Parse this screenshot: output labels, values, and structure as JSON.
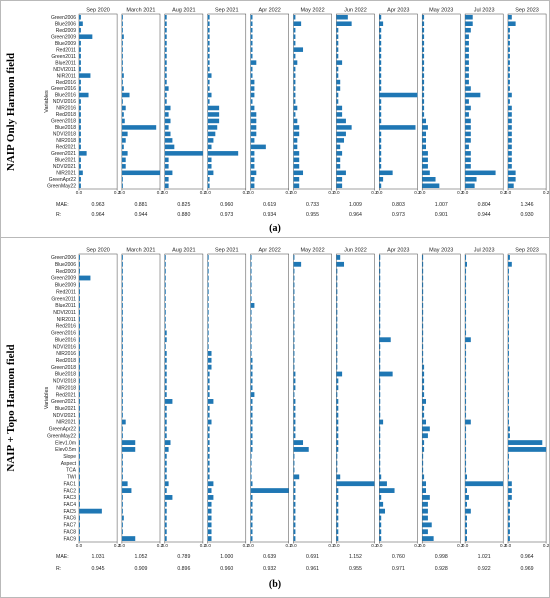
{
  "figure": {
    "labels": [
      "(a)",
      "(b)"
    ],
    "side_titles": [
      "NAIP Only Harmon field",
      "NAIP + Topo Harmon field"
    ],
    "metric_labels": [
      "MAE:",
      "R:"
    ]
  },
  "chart_data": [
    {
      "type": "bar",
      "orientation": "horizontal",
      "panel_label": "(a)",
      "side_title": "NAIP Only Harmon field",
      "ylabel": "Variables",
      "xlim": [
        0,
        0.2
      ],
      "x_tick_labels": [
        "0.0",
        "0.2"
      ],
      "categories": [
        "Green2006",
        "Blue2006",
        "Red2009",
        "Green2009",
        "Blue2009",
        "Red2011",
        "Green2011",
        "Blue2011",
        "NDVI2011",
        "NIR2011",
        "Red2016",
        "Green2016",
        "Blue2016",
        "NDVI2016",
        "NIR2016",
        "Red2018",
        "Green2018",
        "Blue2018",
        "NDVI2018",
        "NIR2018",
        "Red2021",
        "Green2021",
        "Blue2021",
        "NDVI2021",
        "NIR2021",
        "GreenApr22",
        "GreenMay22"
      ],
      "series": [
        {
          "name": "Sep 2020",
          "values": [
            0.01,
            0.02,
            0.01,
            0.07,
            0.01,
            0.01,
            0.01,
            0.01,
            0.01,
            0.06,
            0.01,
            0.01,
            0.05,
            0.01,
            0.01,
            0.01,
            0.01,
            0.01,
            0.01,
            0.01,
            0.01,
            0.04,
            0.01,
            0.01,
            0.02,
            0.01,
            0.01
          ]
        },
        {
          "name": "March 2021",
          "values": [
            0.005,
            0.005,
            0.005,
            0.01,
            0.005,
            0.005,
            0.005,
            0.005,
            0.005,
            0.01,
            0.005,
            0.01,
            0.04,
            0.005,
            0.02,
            0.01,
            0.015,
            0.18,
            0.03,
            0.02,
            0.01,
            0.03,
            0.02,
            0.02,
            0.2,
            0.005,
            0.005
          ]
        },
        {
          "name": "Aug 2021",
          "values": [
            0.01,
            0.01,
            0.01,
            0.01,
            0.01,
            0.01,
            0.01,
            0.01,
            0.01,
            0.01,
            0.01,
            0.02,
            0.01,
            0.01,
            0.03,
            0.02,
            0.03,
            0.02,
            0.03,
            0.04,
            0.05,
            0.2,
            0.02,
            0.02,
            0.04,
            0.02,
            0.02
          ]
        },
        {
          "name": "Sep 2021",
          "values": [
            0.01,
            0.01,
            0.01,
            0.01,
            0.01,
            0.01,
            0.01,
            0.01,
            0.01,
            0.02,
            0.01,
            0.01,
            0.02,
            0.01,
            0.06,
            0.06,
            0.06,
            0.05,
            0.04,
            0.03,
            0.02,
            0.16,
            0.02,
            0.02,
            0.03,
            0.01,
            0.01
          ]
        },
        {
          "name": "Apr 2022",
          "values": [
            0.01,
            0.01,
            0.01,
            0.01,
            0.01,
            0.01,
            0.01,
            0.03,
            0.01,
            0.01,
            0.02,
            0.02,
            0.02,
            0.01,
            0.02,
            0.03,
            0.03,
            0.03,
            0.03,
            0.02,
            0.08,
            0.02,
            0.02,
            0.02,
            0.03,
            0.02,
            0.02
          ]
        },
        {
          "name": "May 2022",
          "values": [
            0.01,
            0.04,
            0.01,
            0.01,
            0.01,
            0.05,
            0.01,
            0.02,
            0.01,
            0.01,
            0.01,
            0.01,
            0.01,
            0.01,
            0.02,
            0.01,
            0.02,
            0.03,
            0.03,
            0.02,
            0.02,
            0.03,
            0.03,
            0.03,
            0.05,
            0.03,
            0.03
          ]
        },
        {
          "name": "Jun 2022",
          "values": [
            0.06,
            0.08,
            0.01,
            0.01,
            0.01,
            0.01,
            0.01,
            0.03,
            0.01,
            0.01,
            0.02,
            0.02,
            0.01,
            0.01,
            0.03,
            0.03,
            0.05,
            0.08,
            0.05,
            0.04,
            0.02,
            0.03,
            0.02,
            0.02,
            0.05,
            0.03,
            0.03
          ]
        },
        {
          "name": "Apr 2023",
          "values": [
            0.01,
            0.02,
            0.01,
            0.01,
            0.01,
            0.01,
            0.01,
            0.01,
            0.01,
            0.01,
            0.01,
            0.01,
            0.2,
            0.01,
            0.01,
            0.01,
            0.01,
            0.19,
            0.01,
            0.01,
            0.01,
            0.01,
            0.01,
            0.01,
            0.07,
            0.02,
            0.01
          ]
        },
        {
          "name": "May 2023",
          "values": [
            0.01,
            0.01,
            0.01,
            0.01,
            0.01,
            0.01,
            0.01,
            0.01,
            0.01,
            0.01,
            0.01,
            0.01,
            0.01,
            0.01,
            0.01,
            0.01,
            0.02,
            0.03,
            0.02,
            0.02,
            0.02,
            0.03,
            0.03,
            0.03,
            0.04,
            0.07,
            0.09
          ]
        },
        {
          "name": "Jul 2023",
          "values": [
            0.04,
            0.04,
            0.03,
            0.02,
            0.02,
            0.02,
            0.02,
            0.02,
            0.02,
            0.02,
            0.02,
            0.03,
            0.08,
            0.02,
            0.03,
            0.02,
            0.03,
            0.03,
            0.03,
            0.03,
            0.02,
            0.03,
            0.03,
            0.03,
            0.16,
            0.06,
            0.05
          ]
        },
        {
          "name": "Sep 2023",
          "values": [
            0.02,
            0.04,
            0.01,
            0.01,
            0.01,
            0.01,
            0.01,
            0.01,
            0.01,
            0.01,
            0.01,
            0.01,
            0.02,
            0.01,
            0.02,
            0.02,
            0.02,
            0.02,
            0.02,
            0.02,
            0.02,
            0.02,
            0.02,
            0.02,
            0.04,
            0.04,
            0.03
          ]
        }
      ],
      "mae": [
        "0.963",
        "0.881",
        "0.825",
        "0.960",
        "0.619",
        "0.733",
        "1.009",
        "0.803",
        "1.007",
        "0.804",
        "1.346"
      ],
      "r": [
        "0.964",
        "0.944",
        "0.880",
        "0.973",
        "0.934",
        "0.955",
        "0.964",
        "0.973",
        "0.901",
        "0.944",
        "0.930"
      ]
    },
    {
      "type": "bar",
      "orientation": "horizontal",
      "panel_label": "(b)",
      "side_title": "NAIP + Topo Harmon field",
      "ylabel": "Variables",
      "xlim": [
        0,
        0.2
      ],
      "x_tick_labels": [
        "0.0",
        "0.2"
      ],
      "categories": [
        "Green2006",
        "Blue2006",
        "Red2009",
        "Green2009",
        "Blue2009",
        "Red2011",
        "Green2011",
        "Blue2011",
        "NDVI2011",
        "NIR2011",
        "Red2016",
        "Green2016",
        "Blue2016",
        "NDVI2016",
        "NIR2016",
        "Red2018",
        "Green2018",
        "Blue2018",
        "NDVI2018",
        "NIR2018",
        "Red2021",
        "Green2021",
        "Blue2021",
        "NDVI2021",
        "NIR2021",
        "GreenApr22",
        "GreenMay22",
        "Elev1.0m",
        "Elev0.5m",
        "Slope",
        "Aspect",
        "TCA",
        "TWI",
        "FAC1",
        "FAC2",
        "FAC3",
        "FAC4",
        "FAC5",
        "FAC6",
        "FAC7",
        "FAC8",
        "FAC9"
      ],
      "series": [
        {
          "name": "Sep 2020",
          "values": [
            0.005,
            0.005,
            0.005,
            0.06,
            0.005,
            0.005,
            0.005,
            0.005,
            0.005,
            0.005,
            0.005,
            0.005,
            0.005,
            0.005,
            0.005,
            0.005,
            0.005,
            0.005,
            0.005,
            0.005,
            0.005,
            0.005,
            0.005,
            0.005,
            0.005,
            0.005,
            0.005,
            0.005,
            0.005,
            0.005,
            0.005,
            0.005,
            0.005,
            0.005,
            0.005,
            0.005,
            0.005,
            0.12,
            0.005,
            0.005,
            0.005,
            0.005
          ]
        },
        {
          "name": "March 2021",
          "values": [
            0.005,
            0.005,
            0.005,
            0.005,
            0.005,
            0.005,
            0.005,
            0.005,
            0.005,
            0.005,
            0.005,
            0.005,
            0.005,
            0.005,
            0.005,
            0.005,
            0.005,
            0.005,
            0.005,
            0.005,
            0.005,
            0.005,
            0.005,
            0.005,
            0.02,
            0.005,
            0.005,
            0.07,
            0.07,
            0.005,
            0.005,
            0.005,
            0.005,
            0.03,
            0.05,
            0.005,
            0.005,
            0.005,
            0.01,
            0.005,
            0.005,
            0.07
          ]
        },
        {
          "name": "Aug 2021",
          "values": [
            0.005,
            0.005,
            0.005,
            0.005,
            0.005,
            0.005,
            0.005,
            0.005,
            0.005,
            0.005,
            0.005,
            0.01,
            0.01,
            0.005,
            0.01,
            0.01,
            0.01,
            0.01,
            0.01,
            0.01,
            0.01,
            0.04,
            0.01,
            0.01,
            0.01,
            0.01,
            0.01,
            0.03,
            0.02,
            0.01,
            0.01,
            0.01,
            0.01,
            0.02,
            0.01,
            0.04,
            0.01,
            0.01,
            0.01,
            0.01,
            0.01,
            0.01
          ]
        },
        {
          "name": "Sep 2021",
          "values": [
            0.005,
            0.005,
            0.005,
            0.005,
            0.005,
            0.005,
            0.005,
            0.005,
            0.005,
            0.005,
            0.005,
            0.005,
            0.005,
            0.005,
            0.02,
            0.02,
            0.02,
            0.01,
            0.01,
            0.01,
            0.01,
            0.03,
            0.01,
            0.01,
            0.02,
            0.01,
            0.01,
            0.01,
            0.01,
            0.01,
            0.01,
            0.01,
            0.01,
            0.03,
            0.02,
            0.03,
            0.02,
            0.02,
            0.02,
            0.02,
            0.02,
            0.02
          ]
        },
        {
          "name": "Apr 2022",
          "values": [
            0.005,
            0.005,
            0.005,
            0.005,
            0.005,
            0.005,
            0.005,
            0.02,
            0.005,
            0.005,
            0.005,
            0.005,
            0.005,
            0.005,
            0.005,
            0.01,
            0.01,
            0.01,
            0.01,
            0.01,
            0.02,
            0.01,
            0.01,
            0.01,
            0.01,
            0.01,
            0.01,
            0.01,
            0.01,
            0.005,
            0.005,
            0.005,
            0.005,
            0.01,
            0.2,
            0.01,
            0.01,
            0.01,
            0.01,
            0.01,
            0.01,
            0.01
          ]
        },
        {
          "name": "May 2022",
          "values": [
            0.005,
            0.04,
            0.005,
            0.005,
            0.005,
            0.005,
            0.005,
            0.005,
            0.005,
            0.005,
            0.005,
            0.005,
            0.005,
            0.005,
            0.005,
            0.005,
            0.005,
            0.01,
            0.01,
            0.01,
            0.005,
            0.01,
            0.01,
            0.01,
            0.01,
            0.01,
            0.01,
            0.05,
            0.08,
            0.005,
            0.005,
            0.005,
            0.03,
            0.01,
            0.01,
            0.01,
            0.01,
            0.01,
            0.01,
            0.01,
            0.01,
            0.01
          ]
        },
        {
          "name": "Jun 2022",
          "values": [
            0.02,
            0.04,
            0.005,
            0.005,
            0.005,
            0.005,
            0.005,
            0.005,
            0.005,
            0.005,
            0.005,
            0.005,
            0.005,
            0.005,
            0.005,
            0.005,
            0.005,
            0.03,
            0.01,
            0.01,
            0.005,
            0.01,
            0.01,
            0.01,
            0.01,
            0.01,
            0.01,
            0.01,
            0.01,
            0.005,
            0.005,
            0.005,
            0.02,
            0.2,
            0.01,
            0.01,
            0.01,
            0.01,
            0.01,
            0.01,
            0.01,
            0.01
          ]
        },
        {
          "name": "Apr 2023",
          "values": [
            0.005,
            0.005,
            0.005,
            0.005,
            0.005,
            0.005,
            0.005,
            0.005,
            0.005,
            0.005,
            0.005,
            0.005,
            0.06,
            0.005,
            0.005,
            0.005,
            0.005,
            0.07,
            0.005,
            0.005,
            0.005,
            0.005,
            0.005,
            0.005,
            0.02,
            0.005,
            0.005,
            0.005,
            0.005,
            0.005,
            0.005,
            0.005,
            0.01,
            0.04,
            0.08,
            0.01,
            0.02,
            0.03,
            0.01,
            0.01,
            0.01,
            0.01
          ]
        },
        {
          "name": "May 2023",
          "values": [
            0.005,
            0.005,
            0.005,
            0.005,
            0.005,
            0.005,
            0.005,
            0.005,
            0.005,
            0.005,
            0.005,
            0.005,
            0.005,
            0.005,
            0.005,
            0.005,
            0.01,
            0.01,
            0.01,
            0.01,
            0.01,
            0.02,
            0.01,
            0.01,
            0.02,
            0.04,
            0.03,
            0.01,
            0.01,
            0.005,
            0.005,
            0.005,
            0.01,
            0.02,
            0.02,
            0.04,
            0.03,
            0.03,
            0.03,
            0.05,
            0.03,
            0.06
          ]
        },
        {
          "name": "Jul 2023",
          "values": [
            0.005,
            0.01,
            0.005,
            0.005,
            0.005,
            0.005,
            0.005,
            0.005,
            0.005,
            0.005,
            0.005,
            0.005,
            0.03,
            0.005,
            0.005,
            0.005,
            0.005,
            0.005,
            0.005,
            0.005,
            0.005,
            0.005,
            0.005,
            0.005,
            0.03,
            0.005,
            0.005,
            0.005,
            0.005,
            0.005,
            0.005,
            0.005,
            0.01,
            0.2,
            0.01,
            0.02,
            0.01,
            0.03,
            0.01,
            0.01,
            0.01,
            0.01
          ]
        },
        {
          "name": "Sep 2023",
          "values": [
            0.01,
            0.02,
            0.005,
            0.005,
            0.005,
            0.005,
            0.005,
            0.005,
            0.005,
            0.005,
            0.005,
            0.005,
            0.005,
            0.005,
            0.005,
            0.005,
            0.005,
            0.005,
            0.005,
            0.005,
            0.005,
            0.005,
            0.005,
            0.005,
            0.005,
            0.01,
            0.01,
            0.18,
            0.2,
            0.005,
            0.005,
            0.005,
            0.005,
            0.02,
            0.02,
            0.02,
            0.01,
            0.01,
            0.01,
            0.01,
            0.01,
            0.01
          ]
        }
      ],
      "mae": [
        "1.031",
        "1.052",
        "0.789",
        "1.000",
        "0.639",
        "0.691",
        "1.152",
        "0.760",
        "0.998",
        "1.021",
        "0.964"
      ],
      "r": [
        "0.945",
        "0.909",
        "0.896",
        "0.960",
        "0.932",
        "0.961",
        "0.955",
        "0.971",
        "0.928",
        "0.922",
        "0.969"
      ]
    }
  ]
}
